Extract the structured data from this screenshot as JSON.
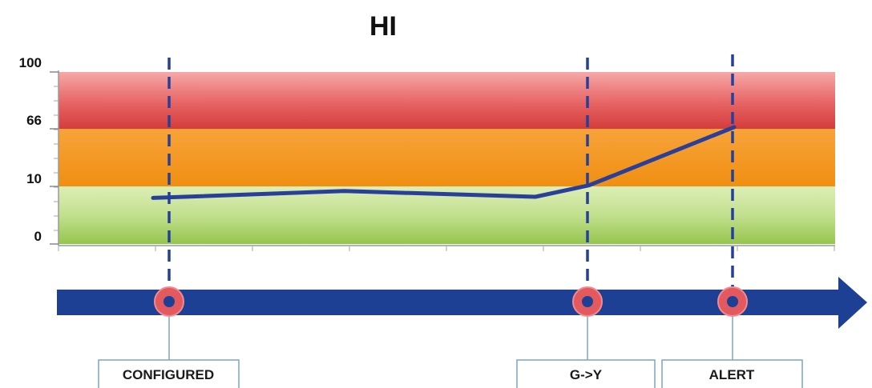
{
  "title": "HI",
  "colors": {
    "red_band": "#e24848",
    "orange_band": "#f39a1e",
    "green_band": "#a9d26a",
    "series_line": "#2a3f99",
    "dashed_line": "#24409a",
    "timeline_arrow": "#1d3f94",
    "marker_ring": "#e2595f",
    "marker_center": "#1d3f94",
    "label_border": "#7fa4c4"
  },
  "chart_data": {
    "type": "line",
    "title": "HI",
    "y_ticks": [
      "100",
      "66",
      "10",
      "0"
    ],
    "bands": [
      {
        "name": "red",
        "from": 66,
        "to": 100,
        "color": "#e24848"
      },
      {
        "name": "orange",
        "from": 10,
        "to": 66,
        "color": "#f39a1e"
      },
      {
        "name": "green",
        "from": 0,
        "to": 10,
        "color": "#a9d26a"
      }
    ],
    "series": [
      {
        "points": [
          {
            "t": 0.0,
            "y": 8
          },
          {
            "t": 0.5,
            "y": 9.2
          },
          {
            "t": 1.0,
            "y": 8.2
          },
          {
            "t": 1.14,
            "y": 11
          },
          {
            "t": 1.52,
            "y": 67
          }
        ]
      }
    ],
    "grid": false
  },
  "events": [
    {
      "label": "CONFIGURED"
    },
    {
      "label": "G->Y"
    },
    {
      "label": "ALERT"
    }
  ]
}
